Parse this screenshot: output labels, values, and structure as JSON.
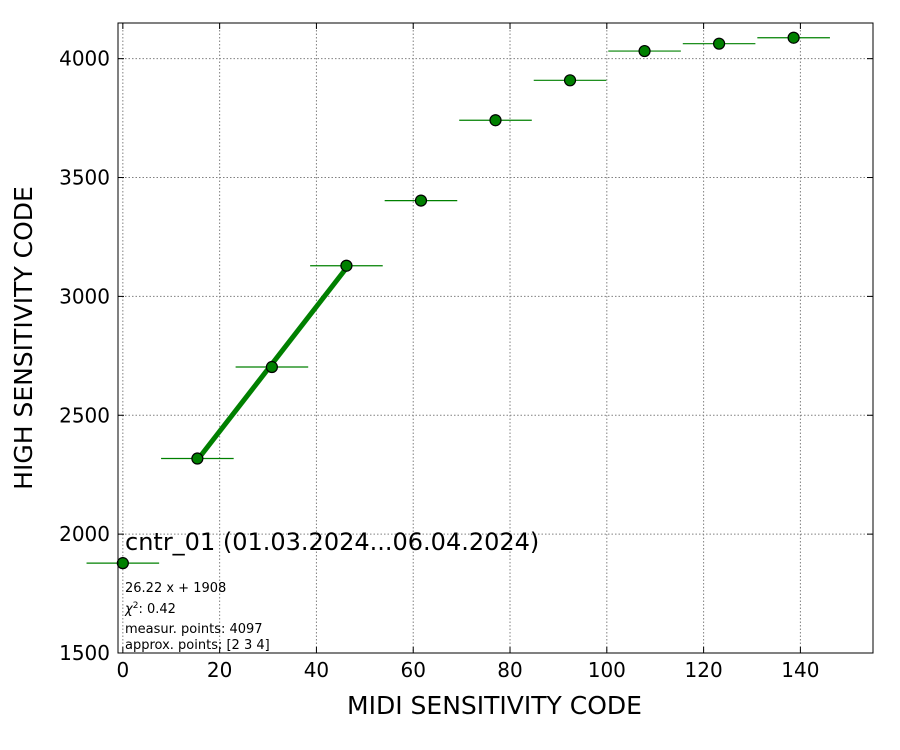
{
  "chart_data": {
    "type": "scatter",
    "xlabel": "MIDI SENSITIVITY CODE",
    "ylabel": "HIGH SENSITIVITY CODE",
    "xlim": [
      -1,
      155
    ],
    "ylim": [
      1500,
      4150
    ],
    "xticks": [
      0,
      20,
      40,
      60,
      80,
      100,
      120,
      140
    ],
    "yticks": [
      1500,
      2000,
      2500,
      3000,
      3500,
      4000
    ],
    "grid": true,
    "series": [
      {
        "marker_color": "#008000",
        "points": [
          {
            "x": 0,
            "y": 1878,
            "xerr": 7.5
          },
          {
            "x": 15.4,
            "y": 2318,
            "xerr": 7.5
          },
          {
            "x": 30.8,
            "y": 2703,
            "xerr": 7.5
          },
          {
            "x": 46.2,
            "y": 3129,
            "xerr": 7.5
          },
          {
            "x": 61.6,
            "y": 3403,
            "xerr": 7.5
          },
          {
            "x": 77.0,
            "y": 3741,
            "xerr": 7.5
          },
          {
            "x": 92.4,
            "y": 3909,
            "xerr": 7.5
          },
          {
            "x": 107.8,
            "y": 4032,
            "xerr": 7.5
          },
          {
            "x": 123.2,
            "y": 4063,
            "xerr": 7.5
          },
          {
            "x": 138.6,
            "y": 4088,
            "xerr": 7.5
          }
        ]
      }
    ],
    "fit": {
      "slope": 26.22,
      "intercept": 1908,
      "x_range": [
        15.4,
        46.2
      ],
      "color": "#008000"
    },
    "annotations": {
      "title": "cntr_01 (01.03.2024...06.04.2024)",
      "fit_equation": "26.22 x + 1908",
      "chi_label": "χ",
      "chi_exp": "2",
      "chi_value": ": 0.42",
      "measured_points": "measur. points: 4097",
      "approx_points": "approx. points: [2 3 4]"
    }
  }
}
